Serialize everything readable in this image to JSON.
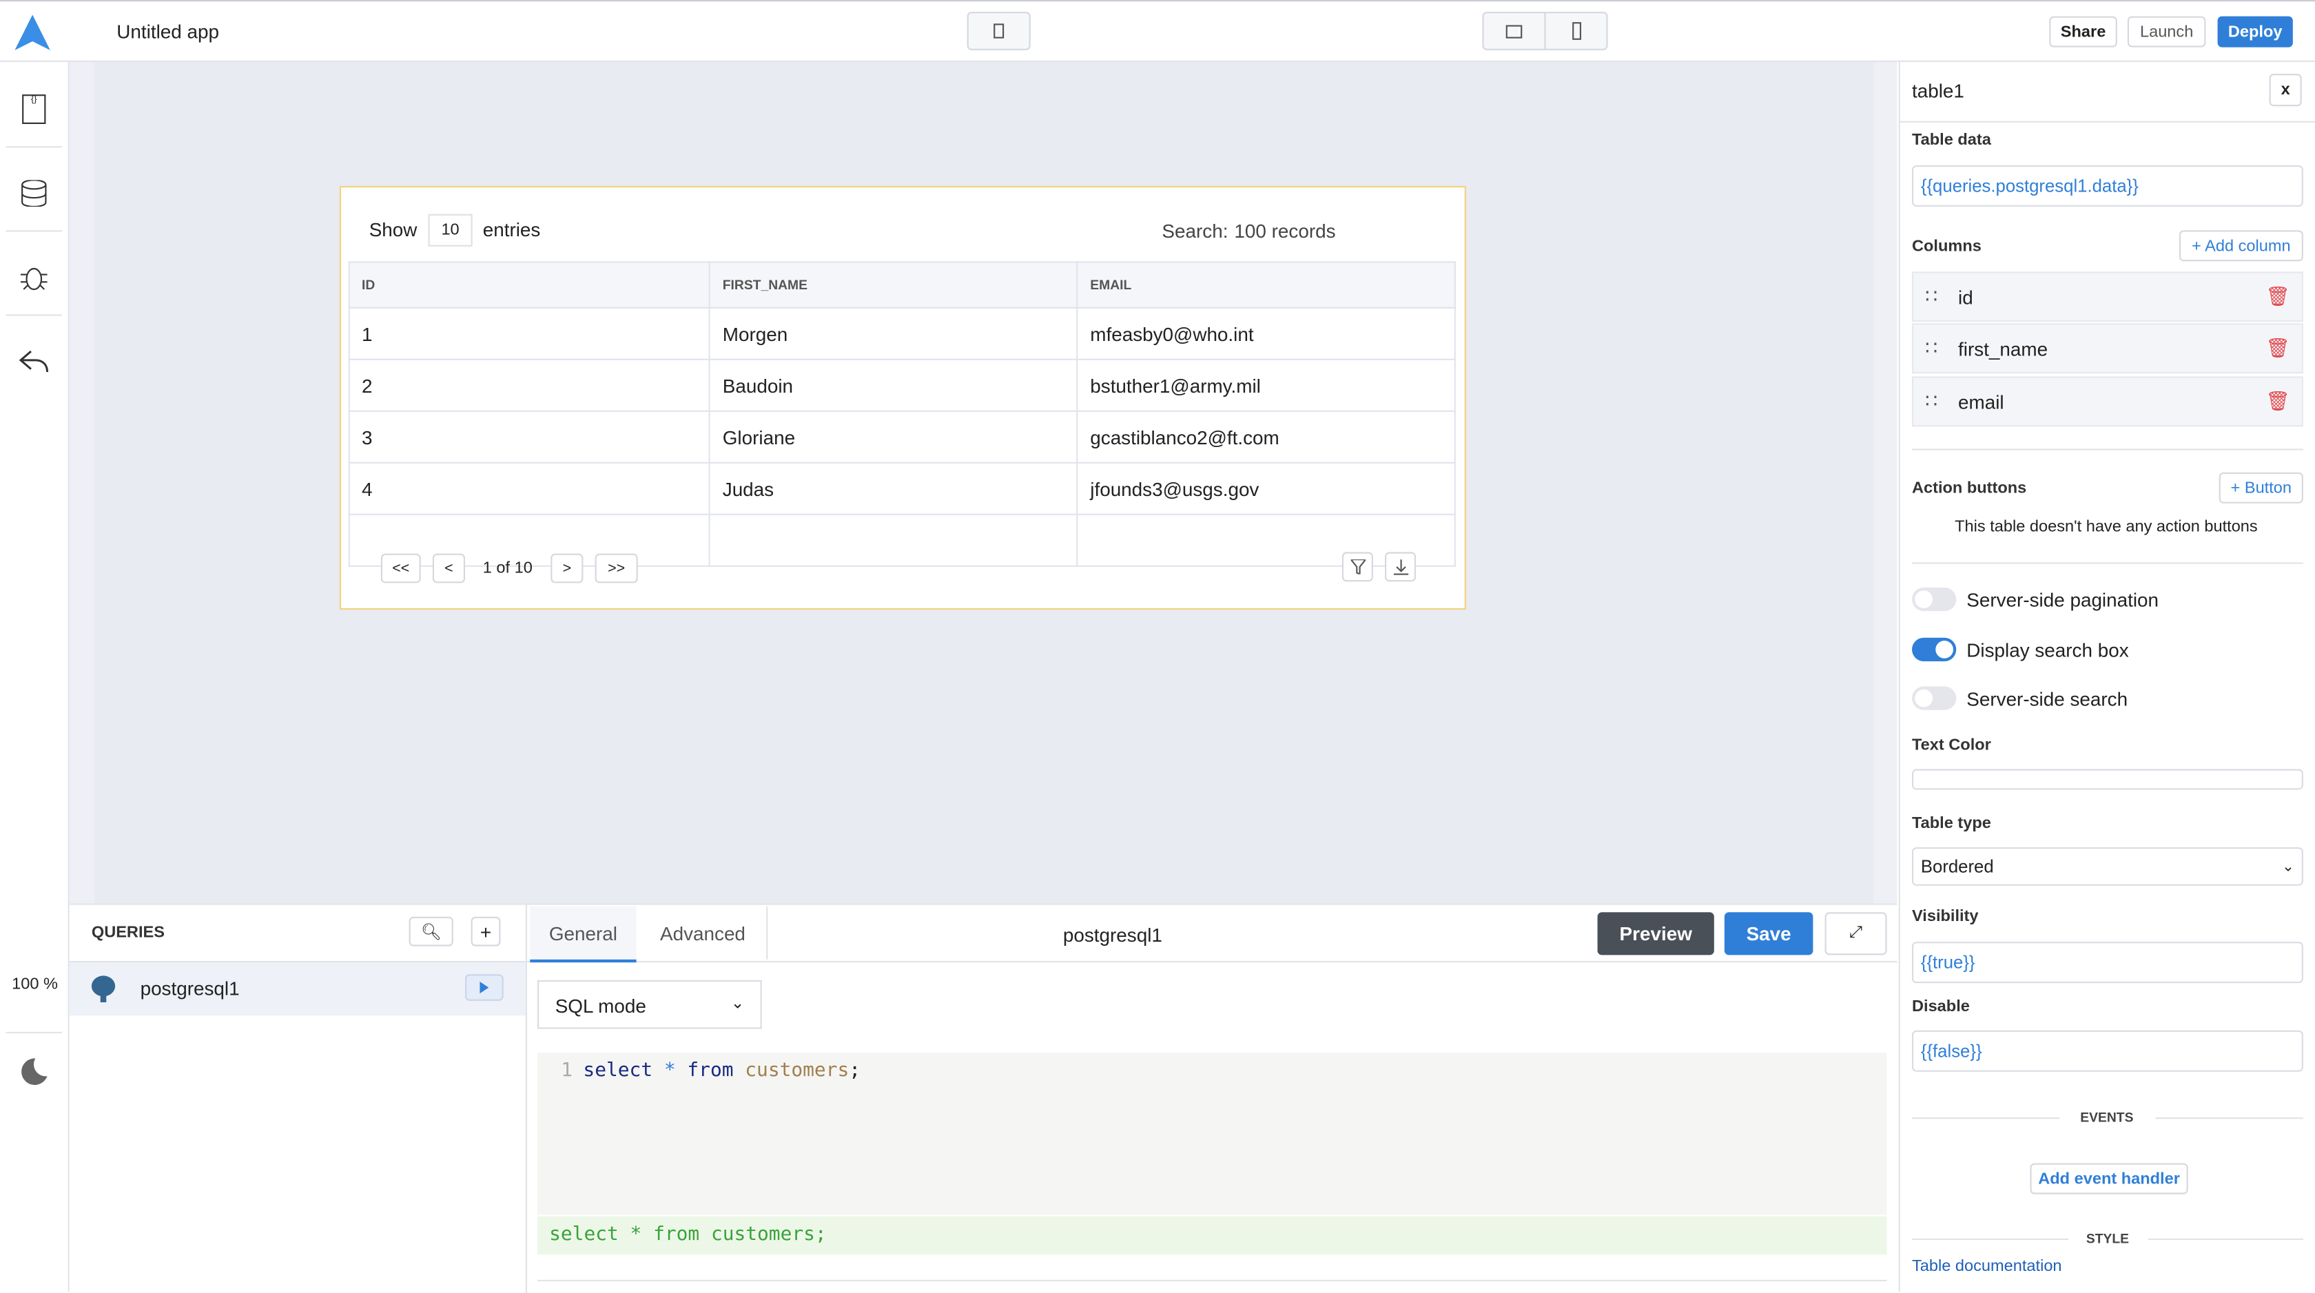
{
  "header": {
    "app_title": "Untitled app",
    "share": "Share",
    "launch": "Launch",
    "deploy": "Deploy"
  },
  "colors": {
    "accent": "#2f7fd8",
    "widget_border": "#f2d27a"
  },
  "leftbar": {
    "zoom": "100 %"
  },
  "table": {
    "show_label": "Show",
    "entries_value": "10",
    "entries_label": "entries",
    "search_label": "Search:",
    "search_value": "100 records",
    "columns": [
      "ID",
      "FIRST_NAME",
      "EMAIL"
    ],
    "rows": [
      [
        "1",
        "Morgen",
        "mfeasby0@who.int"
      ],
      [
        "2",
        "Baudoin",
        "bstuther1@army.mil"
      ],
      [
        "3",
        "Gloriane",
        "gcastiblanco2@ft.com"
      ],
      [
        "4",
        "Judas",
        "jfounds3@usgs.gov"
      ]
    ],
    "pagination": {
      "first": "<<",
      "prev": "<",
      "page": "1 of 10",
      "next": ">",
      "last": ">>"
    }
  },
  "queries": {
    "title": "QUERIES",
    "items": [
      {
        "name": "postgresql1"
      }
    ]
  },
  "editor": {
    "tabs": [
      {
        "label": "General"
      },
      {
        "label": "Advanced"
      }
    ],
    "query_name": "postgresql1",
    "preview": "Preview",
    "save": "Save",
    "mode": "SQL mode",
    "line_number": "1",
    "code": {
      "kw1": "select",
      "op": "*",
      "kw2": "from",
      "ident": "customers",
      "end": ";"
    },
    "preview_text": "select * from customers;"
  },
  "inspector": {
    "title": "table1",
    "close": "x",
    "table_data_label": "Table data",
    "table_data_value": "{{queries.postgresql1.data}}",
    "columns_label": "Columns",
    "add_column": "+ Add column",
    "columns": [
      "id",
      "first_name",
      "email"
    ],
    "action_buttons_label": "Action buttons",
    "add_button": "+ Button",
    "no_actions": "This table doesn't have any action buttons",
    "toggles": [
      {
        "label": "Server-side pagination",
        "on": false
      },
      {
        "label": "Display search box",
        "on": true
      },
      {
        "label": "Server-side search",
        "on": false
      }
    ],
    "text_color_label": "Text Color",
    "table_type_label": "Table type",
    "table_type_value": "Bordered",
    "visibility_label": "Visibility",
    "visibility_value": "{{true}}",
    "disable_label": "Disable",
    "disable_value": "{{false}}",
    "events_header": "EVENTS",
    "add_event_handler": "Add event handler",
    "style_header": "STYLE",
    "docs_link": "Table documentation"
  }
}
